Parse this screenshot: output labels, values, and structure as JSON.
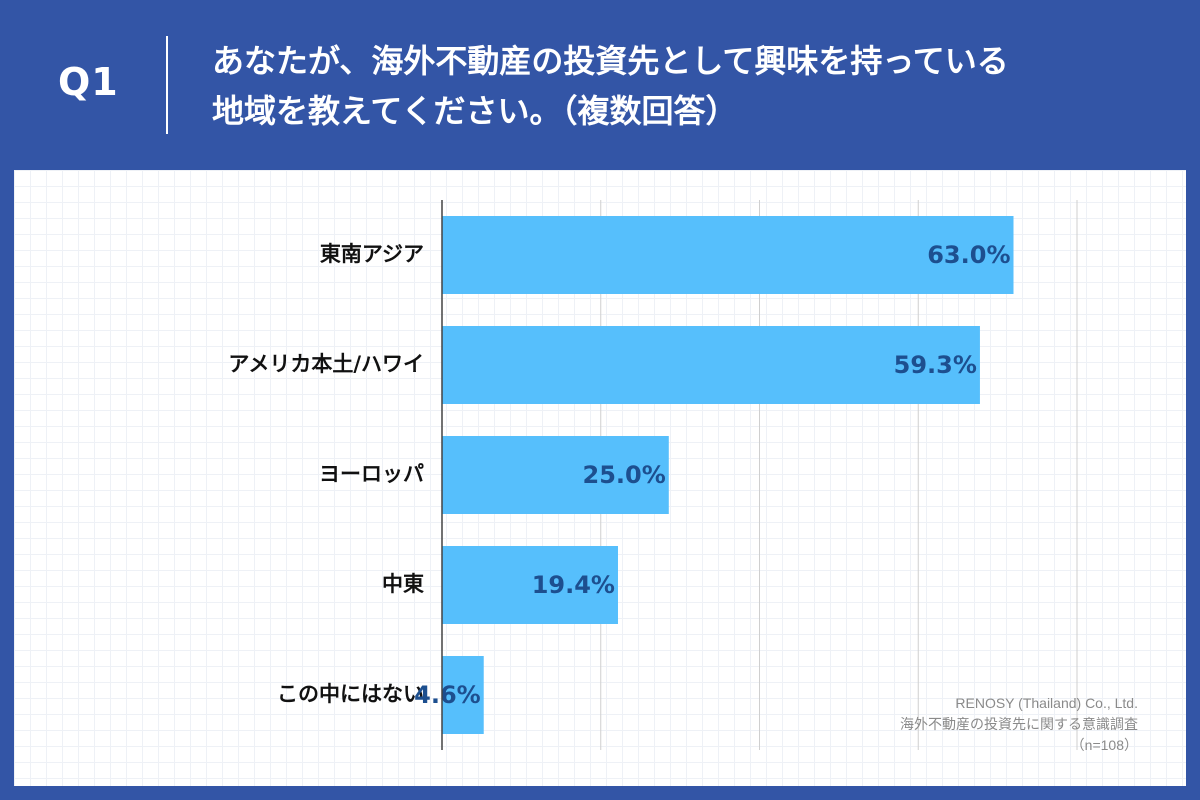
{
  "header": {
    "question_number": "Q1",
    "title_line1": "あなたが、海外不動産の投資先として興味を持っている",
    "title_line2": "地域を教えてください。（複数回答）"
  },
  "colors": {
    "background": "#3355a6",
    "bar": "#56bffc",
    "value_label": "#1d4f8f"
  },
  "chart_data": {
    "type": "bar",
    "orientation": "horizontal",
    "categories": [
      "東南アジア",
      "アメリカ本土/ハワイ",
      "ヨーロッパ",
      "中東",
      "この中にはない"
    ],
    "values": [
      63.0,
      59.3,
      25.0,
      19.4,
      4.6
    ],
    "value_labels": [
      "63.0%",
      "59.3%",
      "25.0%",
      "19.4%",
      "4.6%"
    ],
    "xlim": [
      0,
      70
    ],
    "grid_step": 17.5,
    "grid": true
  },
  "footer": {
    "company": "RENOSY (Thailand) Co., Ltd.",
    "survey": "海外不動産の投資先に関する意識調査",
    "sample": "（n=108）"
  }
}
